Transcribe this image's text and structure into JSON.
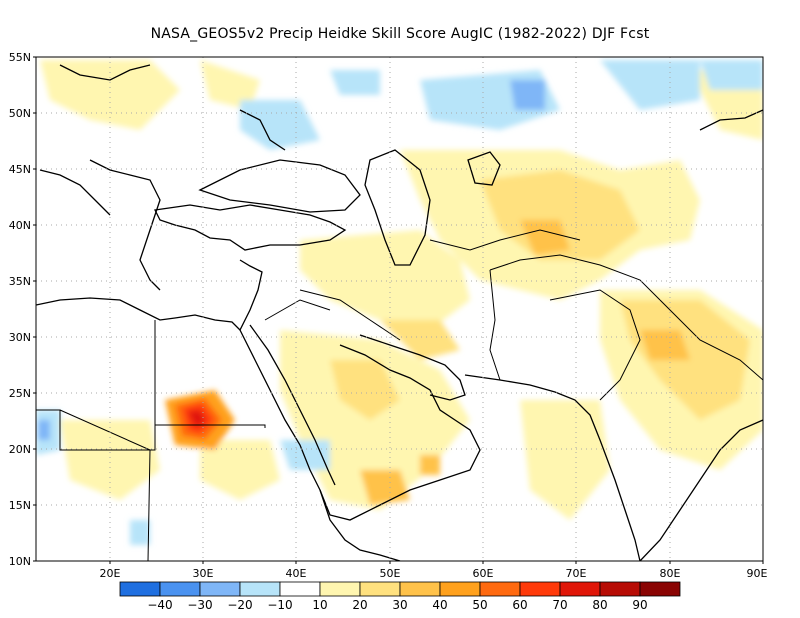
{
  "title": "NASA_GEOS5v2 Precip Heidke Skill Score AugIC (1982-2022) DJF Fcst",
  "lat_labels": [
    "55N",
    "50N",
    "45N",
    "40N",
    "35N",
    "30N",
    "25N",
    "20N",
    "15N",
    "10N"
  ],
  "lon_labels": [
    "20E",
    "30E",
    "40E",
    "50E",
    "60E",
    "70E",
    "80E",
    "90E"
  ],
  "colorbar": {
    "labels": [
      "−40",
      "−30",
      "−20",
      "−10",
      "10",
      "20",
      "30",
      "40",
      "50",
      "60",
      "70",
      "80",
      "90"
    ],
    "colors": [
      "#1f6fe0",
      "#4a92f0",
      "#7fb6f7",
      "#b7e4f9",
      "#ffffff",
      "#fff6b0",
      "#ffe17f",
      "#ffc24a",
      "#ffa11d",
      "#ff6a10",
      "#ff3a0a",
      "#e01608",
      "#b70c05",
      "#8a0403"
    ]
  },
  "map_extent": {
    "lon": [
      12,
      90
    ],
    "lat": [
      10,
      55
    ]
  }
}
